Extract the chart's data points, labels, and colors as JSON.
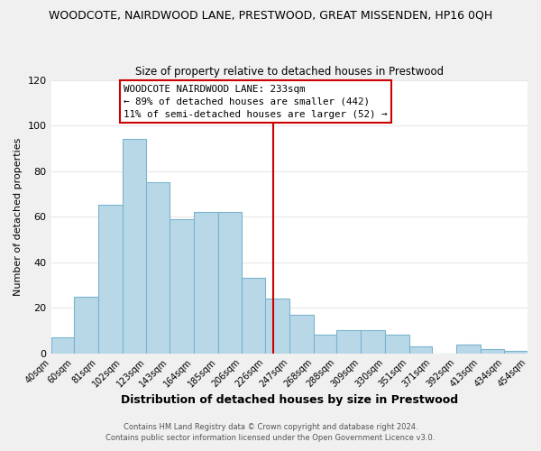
{
  "title": "WOODCOTE, NAIRDWOOD LANE, PRESTWOOD, GREAT MISSENDEN, HP16 0QH",
  "subtitle": "Size of property relative to detached houses in Prestwood",
  "xlabel": "Distribution of detached houses by size in Prestwood",
  "ylabel": "Number of detached properties",
  "bar_color": "#b8d8e8",
  "bar_edge_color": "#7ab4cc",
  "bin_edges": [
    40,
    60,
    81,
    102,
    123,
    143,
    164,
    185,
    206,
    226,
    247,
    268,
    288,
    309,
    330,
    351,
    371,
    392,
    413,
    434,
    454
  ],
  "bin_labels": [
    "40sqm",
    "60sqm",
    "81sqm",
    "102sqm",
    "123sqm",
    "143sqm",
    "164sqm",
    "185sqm",
    "206sqm",
    "226sqm",
    "247sqm",
    "268sqm",
    "288sqm",
    "309sqm",
    "330sqm",
    "351sqm",
    "371sqm",
    "392sqm",
    "413sqm",
    "434sqm",
    "454sqm"
  ],
  "counts": [
    7,
    25,
    65,
    94,
    75,
    59,
    62,
    62,
    33,
    24,
    17,
    8,
    10,
    10,
    8,
    3,
    0,
    4,
    2,
    1
  ],
  "vline_x": 233,
  "vline_color": "#cc0000",
  "annotation_title": "WOODCOTE NAIRDWOOD LANE: 233sqm",
  "annotation_line1": "← 89% of detached houses are smaller (442)",
  "annotation_line2": "11% of semi-detached houses are larger (52) →",
  "annotation_box_color": "#ffffff",
  "annotation_box_edge": "#cc0000",
  "ylim": [
    0,
    120
  ],
  "footer1": "Contains HM Land Registry data © Crown copyright and database right 2024.",
  "footer2": "Contains public sector information licensed under the Open Government Licence v3.0.",
  "background_color": "#f0f0f0",
  "plot_bg_color": "#ffffff",
  "grid_color": "#e8e8e8"
}
